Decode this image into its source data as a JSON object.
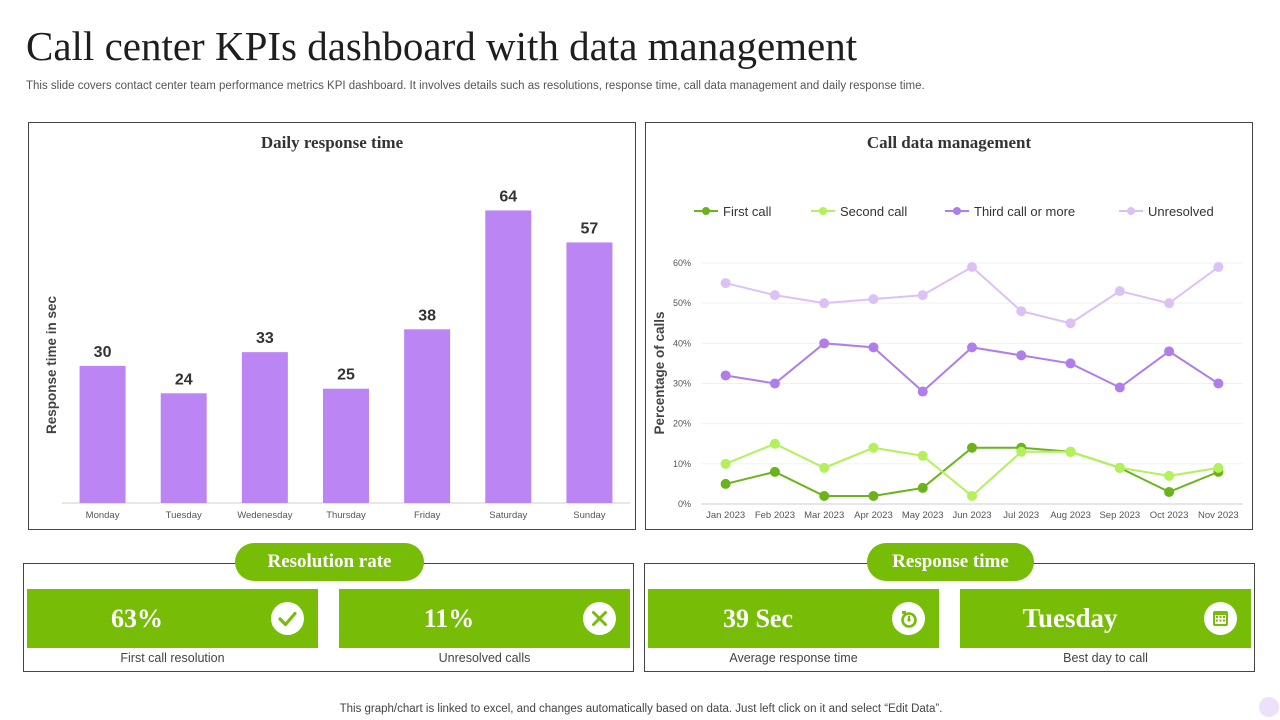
{
  "page": {
    "title": "Call center KPIs dashboard with data management",
    "subtitle": "This slide covers contact center team performance metrics KPI dashboard. It involves details such as resolutions, response time, call data management and daily response time.",
    "footer": "This graph/chart is linked to excel,  and changes automatically based on data. Just left click on it and select “Edit Data”."
  },
  "colors": {
    "bar": "#bb86f3",
    "accent_green": "#77bc07",
    "first_call": "#6ab31a",
    "second_call": "#b3f05a",
    "third_call": "#b07ee8",
    "unresolved": "#dcc2f4"
  },
  "chart_data": [
    {
      "type": "bar",
      "title": "Daily response time",
      "xlabel": "",
      "ylabel": "Response time in sec",
      "categories": [
        "Monday",
        "Tuesday",
        "Wedenesday",
        "Thursday",
        "Friday",
        "Saturday",
        "Sunday"
      ],
      "values": [
        30,
        24,
        33,
        25,
        38,
        64,
        57
      ],
      "ylim": [
        0,
        70
      ],
      "data_labels": true,
      "grid": false,
      "value_axis_visible": false
    },
    {
      "type": "line",
      "title": "Call data management",
      "xlabel": "",
      "ylabel": "Percentage of calls",
      "categories": [
        "Jan 2023",
        "Feb 2023",
        "Mar 2023",
        "Apr 2023",
        "May 2023",
        "Jun 2023",
        "Jul 2023",
        "Aug 2023",
        "Sep 2023",
        "Oct 2023",
        "Nov 2023"
      ],
      "yticks": [
        "0%",
        "10%",
        "20%",
        "30%",
        "40%",
        "50%",
        "60%"
      ],
      "ylim": [
        0,
        60
      ],
      "grid": true,
      "legend_position": "top",
      "series": [
        {
          "name": "First call",
          "values": [
            5,
            8,
            2,
            2,
            4,
            14,
            14,
            13,
            9,
            3,
            8
          ]
        },
        {
          "name": "Second call",
          "values": [
            10,
            15,
            9,
            14,
            12,
            2,
            13,
            13,
            9,
            7,
            9
          ]
        },
        {
          "name": "Third call or more",
          "values": [
            32,
            30,
            40,
            39,
            28,
            39,
            37,
            35,
            29,
            38,
            30
          ]
        },
        {
          "name": "Unresolved",
          "values": [
            55,
            52,
            50,
            51,
            52,
            59,
            48,
            45,
            53,
            50,
            59
          ]
        }
      ]
    }
  ],
  "resolution": {
    "title": "Resolution rate",
    "cards": [
      {
        "value": "63%",
        "caption": "First call resolution",
        "icon": "check-icon"
      },
      {
        "value": "11%",
        "caption": "Unresolved  calls",
        "icon": "close-icon"
      }
    ]
  },
  "response": {
    "title": "Response time",
    "cards": [
      {
        "value": "39 Sec",
        "caption": "Average  response time",
        "icon": "stopwatch-icon"
      },
      {
        "value": "Tuesday",
        "caption": "Best day to call",
        "icon": "calendar-icon"
      }
    ]
  }
}
